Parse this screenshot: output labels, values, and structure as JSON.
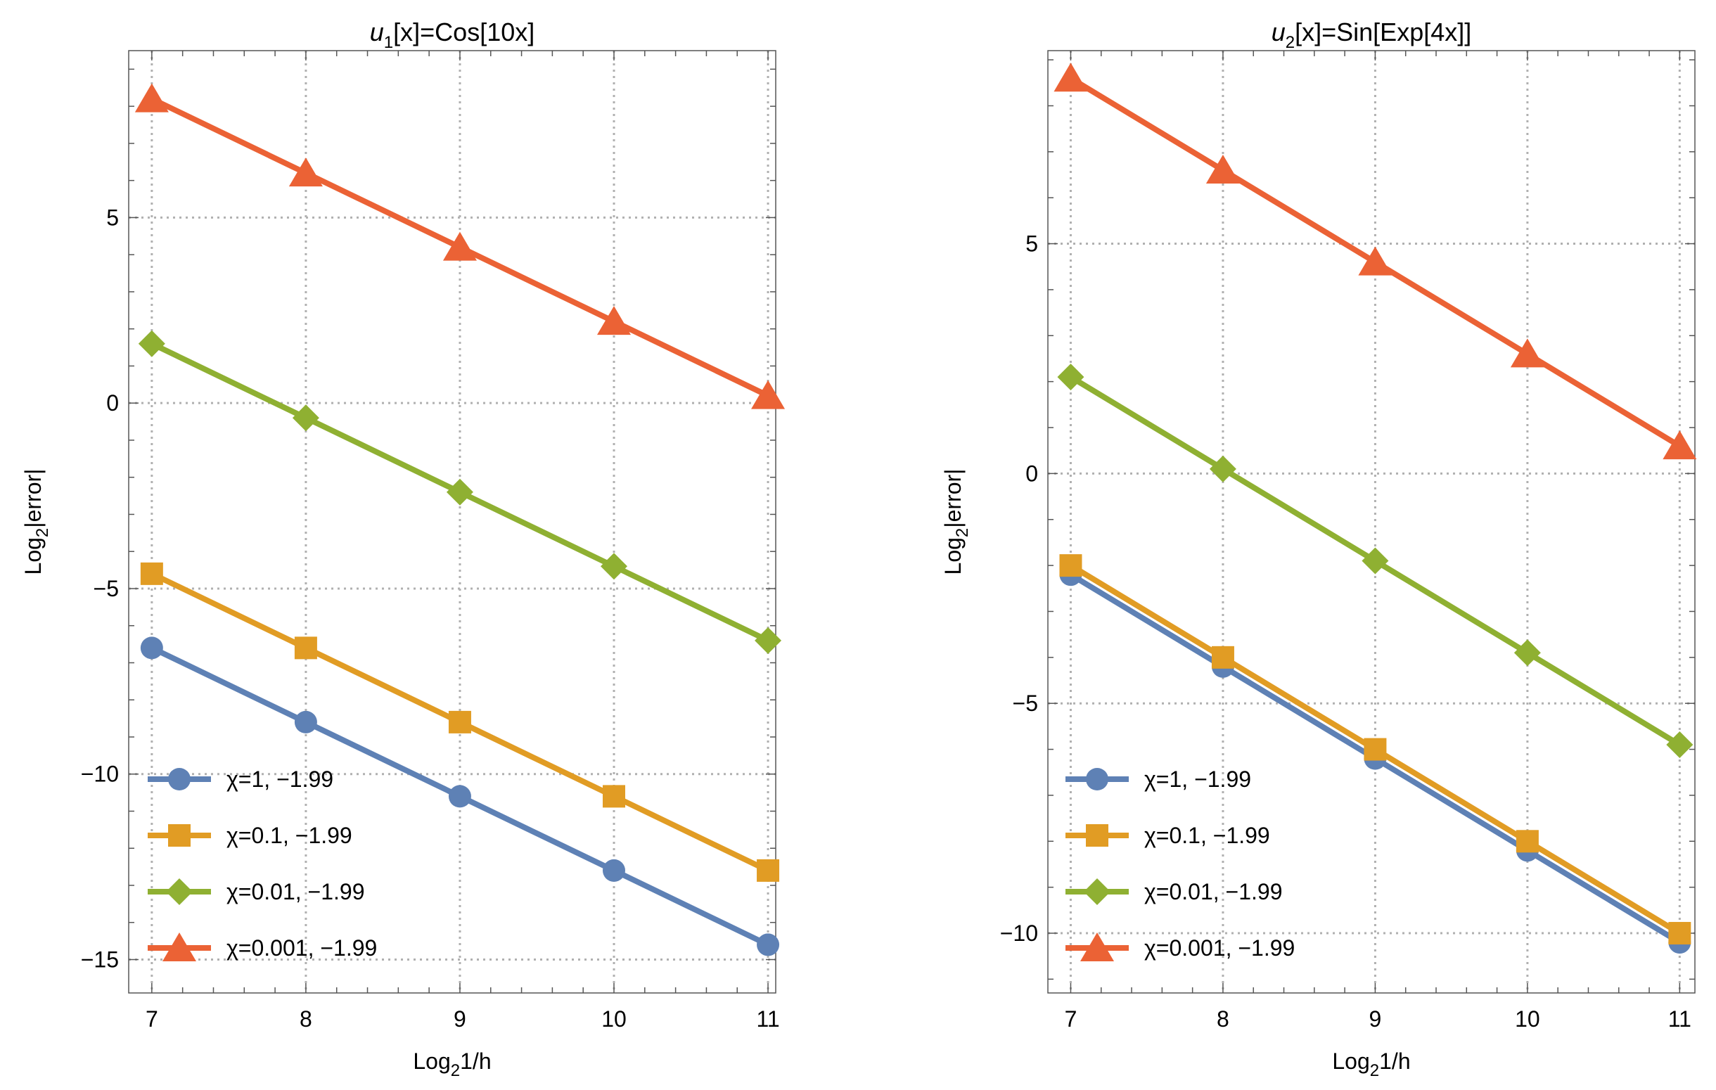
{
  "chart_data": [
    {
      "type": "line",
      "title_fn": "u",
      "title_sub": "1",
      "title_rest": "[x]=Cos[10x]",
      "xlabel_main": "Log",
      "xlabel_sub": "2",
      "xlabel_rest": "1/h",
      "ylabel_main": "Log",
      "ylabel_sub": "2",
      "ylabel_rest": "|error|",
      "xlim": [
        6.85,
        11.05
      ],
      "ylim": [
        -15.9,
        9.5
      ],
      "xticks": [
        7,
        8,
        9,
        10,
        11
      ],
      "xtick_labels": [
        "7",
        "8",
        "9",
        "10",
        "11"
      ],
      "yticks": [
        -15,
        -10,
        -5,
        0,
        5
      ],
      "ytick_labels": [
        "−15",
        "−10",
        "−5",
        "0",
        "5"
      ],
      "series": [
        {
          "name": "χ=1, −1.99",
          "color": "#5e81b5",
          "marker": "circle",
          "x": [
            7,
            8,
            9,
            10,
            11
          ],
          "y": [
            -6.6,
            -8.6,
            -10.6,
            -12.6,
            -14.6
          ]
        },
        {
          "name": "χ=0.1, −1.99",
          "color": "#e19c24",
          "marker": "square",
          "x": [
            7,
            8,
            9,
            10,
            11
          ],
          "y": [
            -4.6,
            -6.6,
            -8.6,
            -10.6,
            -12.6
          ]
        },
        {
          "name": "χ=0.01, −1.99",
          "color": "#8fb032",
          "marker": "diamond",
          "x": [
            7,
            8,
            9,
            10,
            11
          ],
          "y": [
            1.6,
            -0.4,
            -2.4,
            -4.4,
            -6.4
          ]
        },
        {
          "name": "χ=0.001, −1.99",
          "color": "#eb6235",
          "marker": "triangle",
          "x": [
            7,
            8,
            9,
            10,
            11
          ],
          "y": [
            8.2,
            6.2,
            4.2,
            2.2,
            0.2
          ]
        }
      ]
    },
    {
      "type": "line",
      "title_fn": "u",
      "title_sub": "2",
      "title_rest": "[x]=Sin[Exp[4x]]",
      "xlabel_main": "Log",
      "xlabel_sub": "2",
      "xlabel_rest": "1/h",
      "ylabel_main": "Log",
      "ylabel_sub": "2",
      "ylabel_rest": "|error|",
      "xlim": [
        6.85,
        11.1
      ],
      "ylim": [
        -11.3,
        9.2
      ],
      "xticks": [
        7,
        8,
        9,
        10,
        11
      ],
      "xtick_labels": [
        "7",
        "8",
        "9",
        "10",
        "11"
      ],
      "yticks": [
        -10,
        -5,
        0,
        5
      ],
      "ytick_labels": [
        "−10",
        "−5",
        "0",
        "5"
      ],
      "series": [
        {
          "name": "χ=1, −1.99",
          "color": "#5e81b5",
          "marker": "circle",
          "x": [
            7,
            8,
            9,
            10,
            11
          ],
          "y": [
            -2.2,
            -4.2,
            -6.2,
            -8.2,
            -10.2
          ]
        },
        {
          "name": "χ=0.1, −1.99",
          "color": "#e19c24",
          "marker": "square",
          "x": [
            7,
            8,
            9,
            10,
            11
          ],
          "y": [
            -2.0,
            -4.0,
            -6.0,
            -8.0,
            -10.0
          ]
        },
        {
          "name": "χ=0.01, −1.99",
          "color": "#8fb032",
          "marker": "diamond",
          "x": [
            7,
            8,
            9,
            10,
            11
          ],
          "y": [
            2.1,
            0.1,
            -1.9,
            -3.9,
            -5.9
          ]
        },
        {
          "name": "χ=0.001, −1.99",
          "color": "#eb6235",
          "marker": "triangle",
          "x": [
            7,
            8,
            9,
            10,
            11
          ],
          "y": [
            8.6,
            6.6,
            4.6,
            2.6,
            0.6
          ]
        }
      ]
    }
  ]
}
